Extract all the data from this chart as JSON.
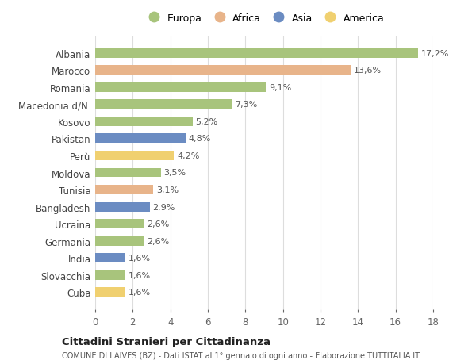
{
  "countries": [
    "Albania",
    "Marocco",
    "Romania",
    "Macedonia d/N.",
    "Kosovo",
    "Pakistan",
    "Perù",
    "Moldova",
    "Tunisia",
    "Bangladesh",
    "Ucraina",
    "Germania",
    "India",
    "Slovacchia",
    "Cuba"
  ],
  "values": [
    17.2,
    13.6,
    9.1,
    7.3,
    5.2,
    4.8,
    4.2,
    3.5,
    3.1,
    2.9,
    2.6,
    2.6,
    1.6,
    1.6,
    1.6
  ],
  "labels": [
    "17,2%",
    "13,6%",
    "9,1%",
    "7,3%",
    "5,2%",
    "4,8%",
    "4,2%",
    "3,5%",
    "3,1%",
    "2,9%",
    "2,6%",
    "2,6%",
    "1,6%",
    "1,6%",
    "1,6%"
  ],
  "continents": [
    "Europa",
    "Africa",
    "Europa",
    "Europa",
    "Europa",
    "Asia",
    "America",
    "Europa",
    "Africa",
    "Asia",
    "Europa",
    "Europa",
    "Asia",
    "Europa",
    "America"
  ],
  "continent_colors": {
    "Europa": "#a8c47c",
    "Africa": "#e8b48a",
    "Asia": "#6b8cc2",
    "America": "#f0d070"
  },
  "legend_order": [
    "Europa",
    "Africa",
    "Asia",
    "America"
  ],
  "title": "Cittadini Stranieri per Cittadinanza",
  "subtitle": "COMUNE DI LAIVES (BZ) - Dati ISTAT al 1° gennaio di ogni anno - Elaborazione TUTTITALIA.IT",
  "xlim": [
    0,
    18
  ],
  "xticks": [
    0,
    2,
    4,
    6,
    8,
    10,
    12,
    14,
    16,
    18
  ],
  "bg_color": "#ffffff",
  "grid_color": "#dddddd",
  "bar_height": 0.55,
  "label_fontsize": 8.0,
  "ytick_fontsize": 8.5,
  "xtick_fontsize": 8.5
}
